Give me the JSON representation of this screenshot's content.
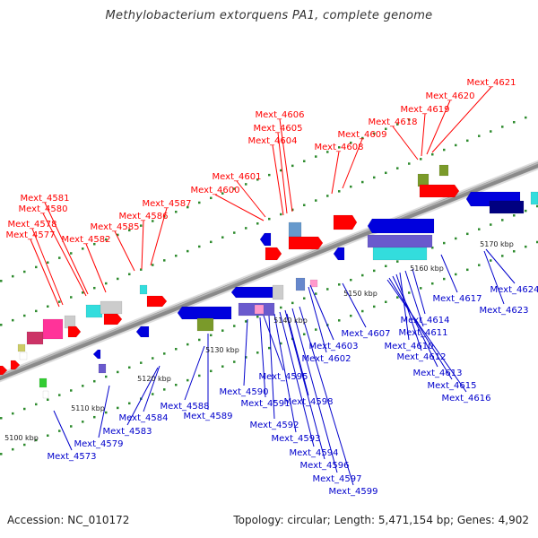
{
  "header": {
    "title": "Methylobacterium extorquens PA1, complete genome"
  },
  "footer": {
    "accession": "Accession: NC_010172",
    "stats": "Topology: circular; Length: 5,471,154 bp; Genes: 4,902"
  },
  "colors": {
    "forward_labels": "#ff0000",
    "reverse_labels": "#0000cc",
    "backbone": "#8a8a8a",
    "dots": "#2e8b2e"
  },
  "forward_genes": [
    "Mext_4621",
    "Mext_4620",
    "Mext_4619",
    "Mext_4618",
    "Mext_4609",
    "Mext_4608",
    "Mext_4606",
    "Mext_4605",
    "Mext_4604",
    "Mext_4601",
    "Mext_4600",
    "Mext_4587",
    "Mext_4586",
    "Mext_4585",
    "Mext_4582",
    "Mext_4581",
    "Mext_4580",
    "Mext_4578",
    "Mext_4577"
  ],
  "reverse_genes": [
    "Mext_4624",
    "Mext_4623",
    "Mext_4617",
    "Mext_4614",
    "Mext_4611",
    "Mext_4610",
    "Mext_4612",
    "Mext_4613",
    "Mext_4615",
    "Mext_4616",
    "Mext_4607",
    "Mext_4603",
    "Mext_4602",
    "Mext_4595",
    "Mext_4598",
    "Mext_4591",
    "Mext_4590",
    "Mext_4592",
    "Mext_4593",
    "Mext_4594",
    "Mext_4596",
    "Mext_4597",
    "Mext_4599",
    "Mext_4588",
    "Mext_4589",
    "Mext_4584",
    "Mext_4583",
    "Mext_4579",
    "Mext_4573"
  ],
  "scale_ticks": [
    "5100 kbp",
    "5110 kbp",
    "5120 kbp",
    "5130 kbp",
    "5140 kbp",
    "5150 kbp",
    "5160 kbp",
    "5170 kbp"
  ]
}
